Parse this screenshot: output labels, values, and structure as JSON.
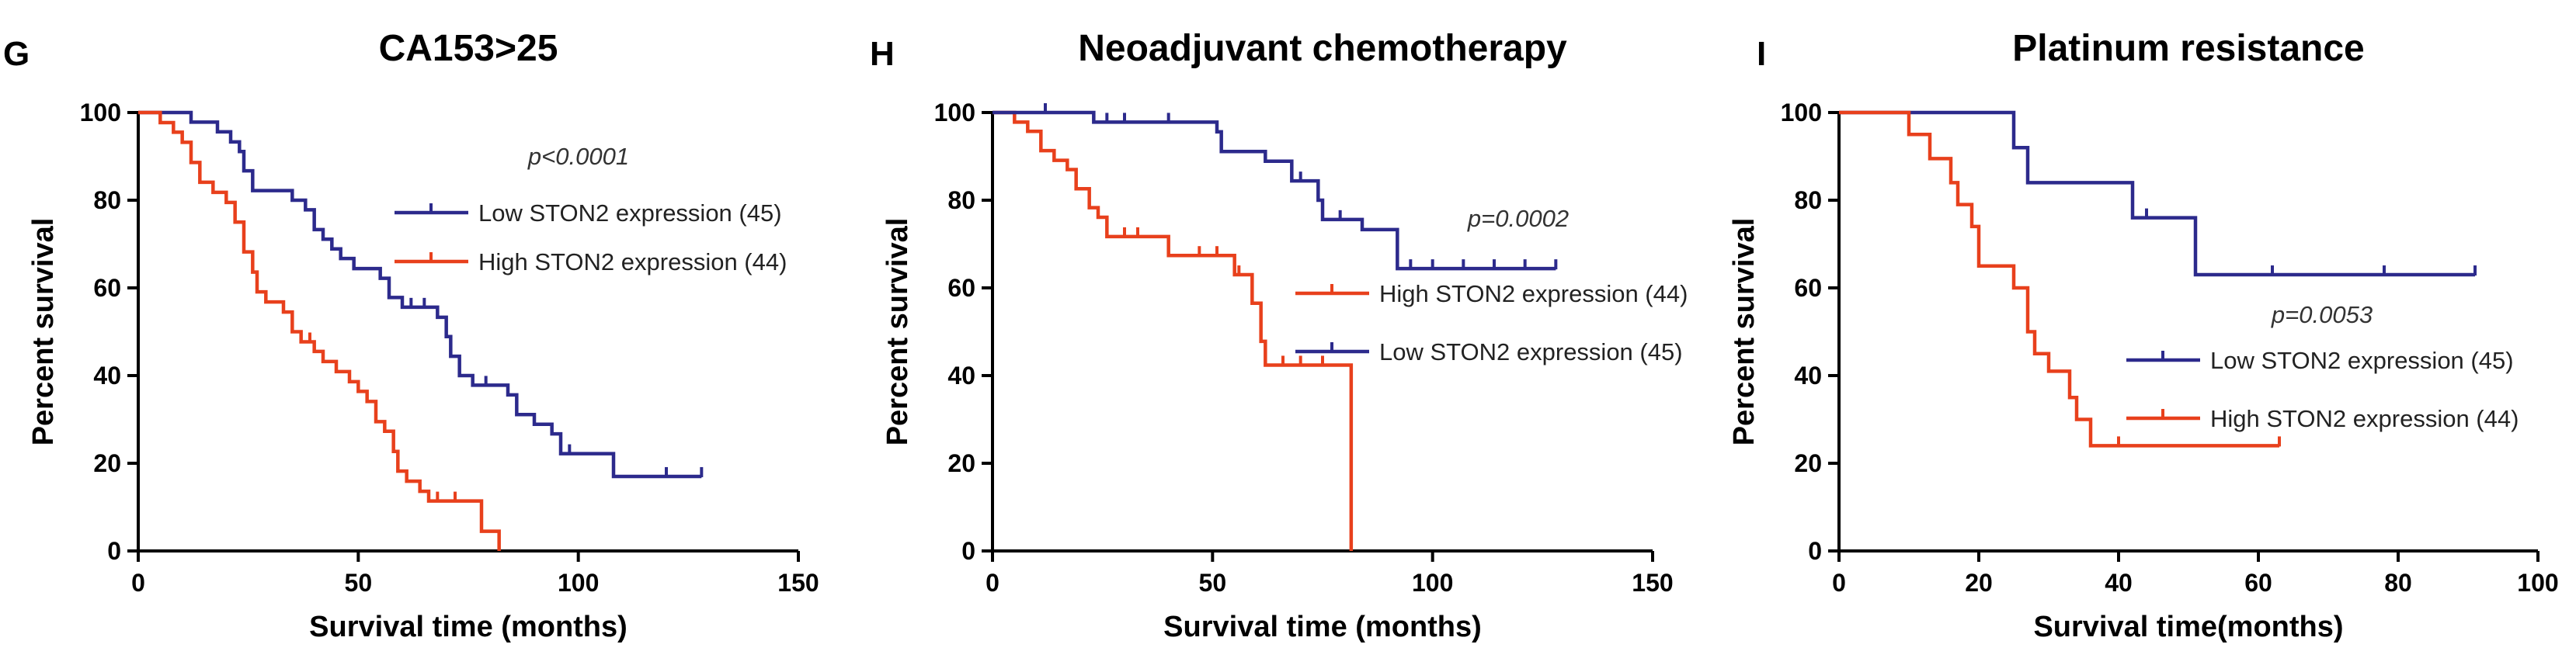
{
  "chart_data": [
    {
      "type": "line",
      "subtype": "kaplan-meier",
      "panel_letter": "G",
      "title": "CA153>25",
      "xlabel": "Survival time (months)",
      "ylabel": "Percent survival",
      "xlim": [
        0,
        150
      ],
      "ylim": [
        0,
        100
      ],
      "xticks": [
        0,
        50,
        100,
        150
      ],
      "yticks": [
        0,
        20,
        40,
        60,
        80,
        100
      ],
      "p_value": "p<0.0001",
      "legend_placement": "top-right",
      "series": [
        {
          "name": "Low STON2 expression (45)",
          "color": "#2c2a8c",
          "steps": [
            [
              0,
              100
            ],
            [
              12,
              97.8
            ],
            [
              18,
              95.6
            ],
            [
              21,
              93.3
            ],
            [
              23,
              91.1
            ],
            [
              24,
              86.7
            ],
            [
              26,
              82.2
            ],
            [
              35,
              80.0
            ],
            [
              38,
              77.8
            ],
            [
              40,
              73.3
            ],
            [
              42,
              71.1
            ],
            [
              44,
              68.9
            ],
            [
              46,
              66.7
            ],
            [
              49,
              64.4
            ],
            [
              55,
              62.2
            ],
            [
              57,
              57.8
            ],
            [
              60,
              55.6
            ],
            [
              68,
              53.3
            ],
            [
              70,
              48.9
            ],
            [
              71,
              44.4
            ],
            [
              73,
              40.0
            ],
            [
              76,
              37.8
            ],
            [
              84,
              35.6
            ],
            [
              86,
              31.1
            ],
            [
              90,
              28.9
            ],
            [
              94,
              26.7
            ],
            [
              96,
              22.2
            ],
            [
              103,
              22.2
            ],
            [
              108,
              17.0
            ],
            [
              128,
              17.0
            ]
          ],
          "censors": [
            [
              62,
              55.6
            ],
            [
              65,
              55.6
            ],
            [
              79,
              37.8
            ],
            [
              98,
              22.2
            ],
            [
              120,
              17.0
            ],
            [
              128,
              17.0
            ]
          ]
        },
        {
          "name": "High STON2 expression (44)",
          "color": "#e8401c",
          "steps": [
            [
              0,
              100
            ],
            [
              5,
              97.7
            ],
            [
              8,
              95.5
            ],
            [
              10,
              93.2
            ],
            [
              12,
              88.6
            ],
            [
              14,
              84.1
            ],
            [
              17,
              81.8
            ],
            [
              20,
              79.5
            ],
            [
              22,
              75.0
            ],
            [
              24,
              68.2
            ],
            [
              26,
              63.6
            ],
            [
              27,
              59.1
            ],
            [
              29,
              56.8
            ],
            [
              33,
              54.5
            ],
            [
              35,
              50.0
            ],
            [
              37,
              47.7
            ],
            [
              40,
              45.5
            ],
            [
              42,
              43.2
            ],
            [
              45,
              40.9
            ],
            [
              48,
              38.6
            ],
            [
              50,
              36.4
            ],
            [
              52,
              34.1
            ],
            [
              54,
              29.5
            ],
            [
              56,
              27.3
            ],
            [
              58,
              22.7
            ],
            [
              59,
              18.2
            ],
            [
              61,
              15.9
            ],
            [
              64,
              13.6
            ],
            [
              66,
              11.4
            ],
            [
              78,
              4.5
            ],
            [
              82,
              0
            ]
          ],
          "censors": [
            [
              39,
              47.7
            ],
            [
              68,
              11.4
            ],
            [
              72,
              11.4
            ]
          ]
        }
      ]
    },
    {
      "type": "line",
      "subtype": "kaplan-meier",
      "panel_letter": "H",
      "title": "Neoadjuvant chemotherapy",
      "xlabel": "Survival time (months)",
      "ylabel": "Percent survival",
      "xlim": [
        0,
        150
      ],
      "ylim": [
        0,
        100
      ],
      "xticks": [
        0,
        50,
        100,
        150
      ],
      "yticks": [
        0,
        20,
        40,
        60,
        80,
        100
      ],
      "p_value": "p=0.0002",
      "legend_placement": "center-right",
      "series": [
        {
          "name": "High STON2 expression (44)",
          "color": "#e8401c",
          "steps": [
            [
              0,
              100
            ],
            [
              5,
              97.8
            ],
            [
              8,
              95.7
            ],
            [
              11,
              91.3
            ],
            [
              14,
              89.1
            ],
            [
              17,
              87.0
            ],
            [
              19,
              82.6
            ],
            [
              22,
              78.3
            ],
            [
              24,
              76.1
            ],
            [
              26,
              71.7
            ],
            [
              37,
              71.7
            ],
            [
              40,
              67.4
            ],
            [
              55,
              63.0
            ],
            [
              59,
              56.5
            ],
            [
              61,
              47.8
            ],
            [
              62,
              42.4
            ],
            [
              81,
              42.4
            ],
            [
              81.5,
              0
            ]
          ],
          "censors": [
            [
              30,
              71.7
            ],
            [
              33,
              71.7
            ],
            [
              47,
              67.4
            ],
            [
              51,
              67.4
            ],
            [
              56,
              63.0
            ],
            [
              66,
              42.4
            ],
            [
              70,
              42.4
            ],
            [
              75,
              42.4
            ]
          ]
        },
        {
          "name": "Low STON2 expression (45)",
          "color": "#2c2a8c",
          "steps": [
            [
              0,
              100
            ],
            [
              20,
              100
            ],
            [
              23,
              97.8
            ],
            [
              50,
              97.8
            ],
            [
              51,
              95.6
            ],
            [
              52,
              91.1
            ],
            [
              62,
              88.9
            ],
            [
              68,
              84.4
            ],
            [
              73,
              84.4
            ],
            [
              74,
              80.0
            ],
            [
              75,
              75.6
            ],
            [
              83,
              75.6
            ],
            [
              84,
              73.3
            ],
            [
              91,
              73.3
            ],
            [
              92,
              64.4
            ],
            [
              128,
              64.4
            ]
          ],
          "censors": [
            [
              12,
              100
            ],
            [
              26,
              97.8
            ],
            [
              30,
              97.8
            ],
            [
              40,
              97.8
            ],
            [
              70,
              84.4
            ],
            [
              79,
              75.6
            ],
            [
              95,
              64.4
            ],
            [
              100,
              64.4
            ],
            [
              107,
              64.4
            ],
            [
              114,
              64.4
            ],
            [
              121,
              64.4
            ],
            [
              128,
              64.4
            ]
          ]
        }
      ]
    },
    {
      "type": "line",
      "subtype": "kaplan-meier",
      "panel_letter": "I",
      "title": "Platinum resistance",
      "xlabel": "Survival time(months)",
      "ylabel": "Percent survival",
      "xlim": [
        0,
        100
      ],
      "ylim": [
        0,
        100
      ],
      "xticks": [
        0,
        20,
        40,
        60,
        80,
        100
      ],
      "yticks": [
        0,
        20,
        40,
        60,
        80,
        100
      ],
      "p_value": "p=0.0053",
      "legend_placement": "center-right",
      "series": [
        {
          "name": "Low STON2 expression (45)",
          "color": "#2c2a8c",
          "steps": [
            [
              0,
              100
            ],
            [
              24,
              100
            ],
            [
              25,
              92
            ],
            [
              27,
              84
            ],
            [
              41,
              84
            ],
            [
              42,
              76
            ],
            [
              50,
              76
            ],
            [
              51,
              63
            ],
            [
              91,
              63
            ]
          ],
          "censors": [
            [
              44,
              76
            ],
            [
              62,
              63
            ],
            [
              78,
              63
            ],
            [
              91,
              63
            ]
          ]
        },
        {
          "name": "High STON2 expression (44)",
          "color": "#e8401c",
          "steps": [
            [
              0,
              100
            ],
            [
              9,
              100
            ],
            [
              10,
              95
            ],
            [
              13,
              89.5
            ],
            [
              16,
              84
            ],
            [
              17,
              79
            ],
            [
              19,
              74
            ],
            [
              20,
              65
            ],
            [
              24,
              65
            ],
            [
              25,
              60
            ],
            [
              27,
              50
            ],
            [
              28,
              45
            ],
            [
              30,
              41
            ],
            [
              33,
              35
            ],
            [
              34,
              30
            ],
            [
              36,
              24
            ],
            [
              63,
              24
            ]
          ],
          "censors": [
            [
              40,
              24
            ],
            [
              63,
              24
            ]
          ]
        }
      ]
    }
  ]
}
